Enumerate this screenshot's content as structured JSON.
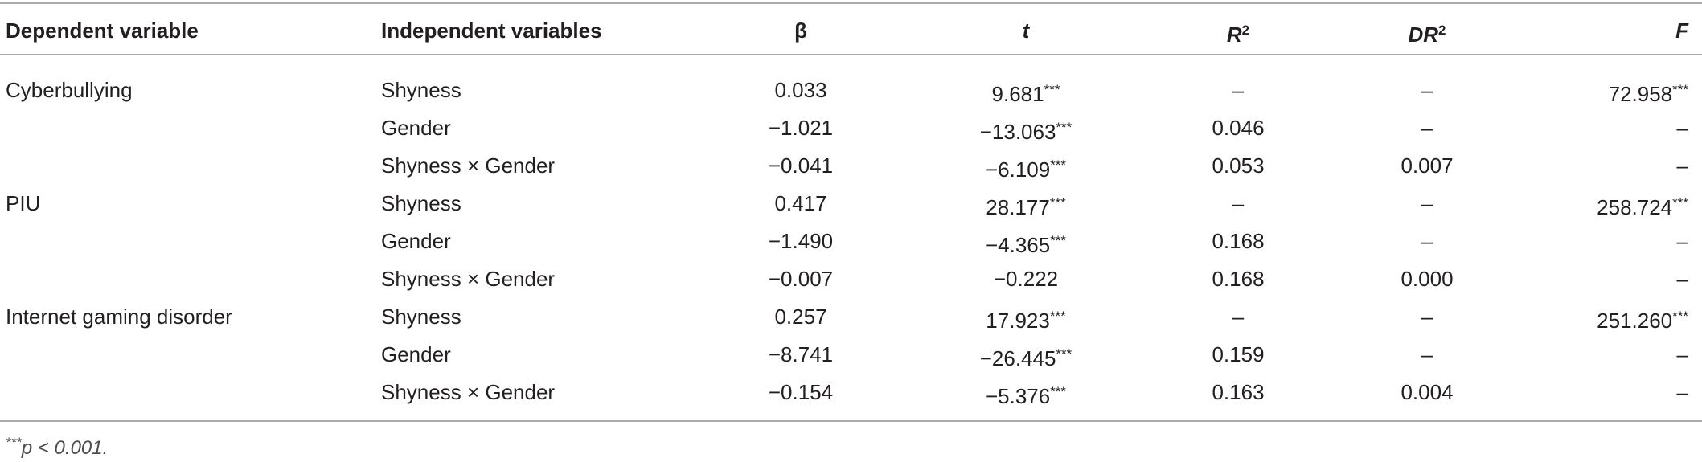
{
  "table": {
    "headers": [
      {
        "text": "Dependent variable"
      },
      {
        "text": "Independent variables"
      },
      {
        "text": "β"
      },
      {
        "text": "t",
        "italic": true
      },
      {
        "text": "R",
        "sup": "2",
        "italic": true
      },
      {
        "text": "DR",
        "sup": "2",
        "italic": true
      },
      {
        "text": "F",
        "italic": true
      }
    ],
    "groups": [
      {
        "dependent": "Cyberbullying",
        "rows": [
          {
            "independent": "Shyness",
            "beta": "0.033",
            "t": "9.681",
            "t_sup": "***",
            "r2": "–",
            "dr2": "–",
            "f": "72.958",
            "f_sup": "***"
          },
          {
            "independent": "Gender",
            "beta": "−1.021",
            "t": "−13.063",
            "t_sup": "***",
            "r2": "0.046",
            "dr2": "–",
            "f": "–"
          },
          {
            "independent": "Shyness × Gender",
            "beta": "−0.041",
            "t": "−6.109",
            "t_sup": "***",
            "r2": "0.053",
            "dr2": "0.007",
            "f": "–"
          }
        ]
      },
      {
        "dependent": "PIU",
        "rows": [
          {
            "independent": "Shyness",
            "beta": "0.417",
            "t": "28.177",
            "t_sup": "***",
            "r2": "–",
            "dr2": "–",
            "f": "258.724",
            "f_sup": "***"
          },
          {
            "independent": "Gender",
            "beta": "−1.490",
            "t": "−4.365",
            "t_sup": "***",
            "r2": "0.168",
            "dr2": "–",
            "f": "–"
          },
          {
            "independent": "Shyness × Gender",
            "beta": "−0.007",
            "t": "−0.222",
            "r2": "0.168",
            "dr2": "0.000",
            "f": "–"
          }
        ]
      },
      {
        "dependent": "Internet gaming disorder",
        "rows": [
          {
            "independent": "Shyness",
            "beta": "0.257",
            "t": "17.923",
            "t_sup": "***",
            "r2": "–",
            "dr2": "–",
            "f": "251.260",
            "f_sup": "***"
          },
          {
            "independent": "Gender",
            "beta": "−8.741",
            "t": "−26.445",
            "t_sup": "***",
            "r2": "0.159",
            "dr2": "–",
            "f": "–"
          },
          {
            "independent": "Shyness × Gender",
            "beta": "−0.154",
            "t": "−5.376",
            "t_sup": "***",
            "r2": "0.163",
            "dr2": "0.004",
            "f": "–"
          }
        ]
      }
    ],
    "footnote": {
      "sup": "***",
      "text": "p < 0.001."
    }
  }
}
